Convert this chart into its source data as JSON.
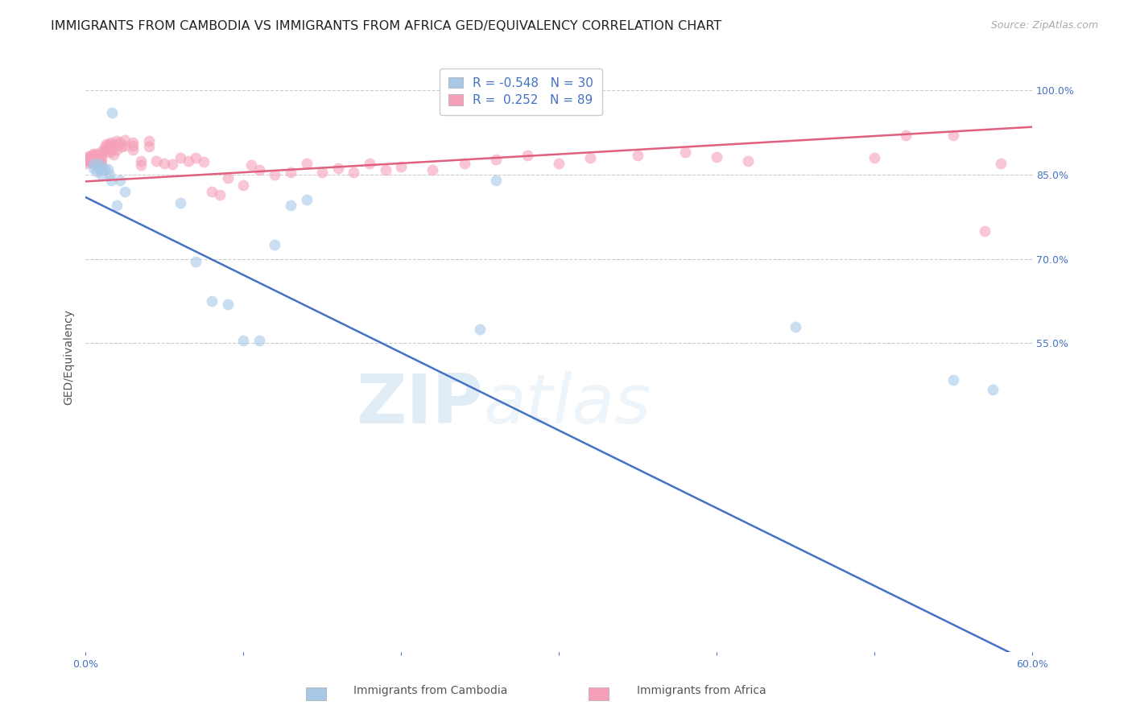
{
  "title": "IMMIGRANTS FROM CAMBODIA VS IMMIGRANTS FROM AFRICA GED/EQUIVALENCY CORRELATION CHART",
  "source": "Source: ZipAtlas.com",
  "ylabel": "GED/Equivalency",
  "legend_label1": "Immigrants from Cambodia",
  "legend_label2": "Immigrants from Africa",
  "R1": -0.548,
  "N1": 30,
  "R2": 0.252,
  "N2": 89,
  "color1": "#a8c8e8",
  "color2": "#f4a0b8",
  "line_color1": "#4472c4",
  "line_color2": "#e06080",
  "xlim": [
    0.0,
    0.6
  ],
  "ylim": [
    0.0,
    1.05
  ],
  "blue_line_x0": 0.0,
  "blue_line_y0": 0.81,
  "blue_line_x1": 0.6,
  "blue_line_y1": -0.02,
  "pink_line_x0": 0.0,
  "pink_line_y0": 0.838,
  "pink_line_x1": 0.6,
  "pink_line_y1": 0.935,
  "background_color": "#ffffff",
  "grid_color": "#cccccc",
  "watermark_zip": "ZIP",
  "watermark_atlas": "atlas",
  "cambodia_x": [
    0.005,
    0.005,
    0.007,
    0.008,
    0.009,
    0.01,
    0.01,
    0.01,
    0.012,
    0.014,
    0.015,
    0.016,
    0.017,
    0.02,
    0.022,
    0.025,
    0.06,
    0.07,
    0.08,
    0.09,
    0.1,
    0.11,
    0.12,
    0.13,
    0.14,
    0.25,
    0.26,
    0.45,
    0.55,
    0.575
  ],
  "cambodia_y": [
    0.868,
    0.862,
    0.856,
    0.87,
    0.86,
    0.865,
    0.858,
    0.85,
    0.86,
    0.86,
    0.85,
    0.84,
    0.96,
    0.795,
    0.84,
    0.82,
    0.8,
    0.695,
    0.625,
    0.62,
    0.555,
    0.555,
    0.725,
    0.795,
    0.805,
    0.575,
    0.84,
    0.58,
    0.485,
    0.468
  ],
  "africa_x": [
    0.0,
    0.0,
    0.0,
    0.0,
    0.0,
    0.002,
    0.002,
    0.003,
    0.003,
    0.004,
    0.004,
    0.004,
    0.005,
    0.005,
    0.005,
    0.006,
    0.006,
    0.007,
    0.007,
    0.008,
    0.008,
    0.009,
    0.009,
    0.01,
    0.01,
    0.01,
    0.01,
    0.012,
    0.012,
    0.013,
    0.013,
    0.015,
    0.015,
    0.015,
    0.016,
    0.016,
    0.017,
    0.018,
    0.02,
    0.02,
    0.02,
    0.022,
    0.023,
    0.025,
    0.025,
    0.03,
    0.03,
    0.03,
    0.035,
    0.035,
    0.04,
    0.04,
    0.045,
    0.05,
    0.055,
    0.06,
    0.065,
    0.07,
    0.075,
    0.08,
    0.085,
    0.09,
    0.1,
    0.105,
    0.11,
    0.12,
    0.13,
    0.14,
    0.15,
    0.16,
    0.17,
    0.18,
    0.19,
    0.2,
    0.22,
    0.24,
    0.26,
    0.28,
    0.3,
    0.32,
    0.35,
    0.38,
    0.4,
    0.42,
    0.5,
    0.52,
    0.55,
    0.57,
    0.58
  ],
  "africa_y": [
    0.88,
    0.876,
    0.87,
    0.874,
    0.878,
    0.883,
    0.877,
    0.882,
    0.875,
    0.884,
    0.878,
    0.872,
    0.888,
    0.88,
    0.874,
    0.884,
    0.877,
    0.887,
    0.878,
    0.884,
    0.876,
    0.88,
    0.872,
    0.892,
    0.885,
    0.878,
    0.87,
    0.9,
    0.893,
    0.905,
    0.896,
    0.905,
    0.898,
    0.89,
    0.908,
    0.9,
    0.893,
    0.886,
    0.91,
    0.903,
    0.895,
    0.908,
    0.9,
    0.912,
    0.902,
    0.908,
    0.902,
    0.894,
    0.875,
    0.867,
    0.91,
    0.9,
    0.875,
    0.87,
    0.868,
    0.88,
    0.875,
    0.88,
    0.873,
    0.82,
    0.814,
    0.845,
    0.832,
    0.867,
    0.858,
    0.85,
    0.855,
    0.87,
    0.855,
    0.862,
    0.855,
    0.87,
    0.858,
    0.864,
    0.858,
    0.87,
    0.878,
    0.885,
    0.87,
    0.88,
    0.885,
    0.89,
    0.882,
    0.875,
    0.88,
    0.92,
    0.92,
    0.75,
    0.87
  ],
  "title_fontsize": 11.5,
  "axis_label_fontsize": 10,
  "tick_fontsize": 9,
  "legend_fontsize": 11,
  "source_fontsize": 9,
  "marker_size": 10,
  "marker_alpha": 0.6
}
